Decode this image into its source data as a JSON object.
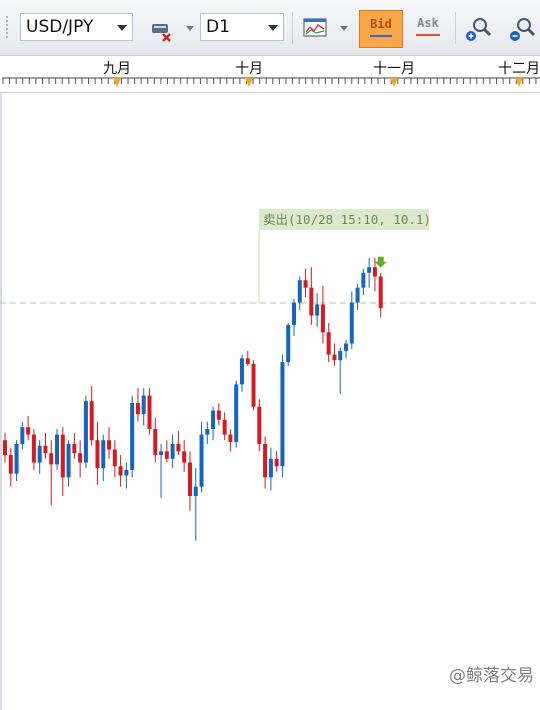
{
  "toolbar": {
    "symbol": "USD/JPY",
    "timeframe": "D1",
    "bid_label": "Bid",
    "ask_label": "Ask"
  },
  "time_scale": {
    "months": [
      "九月",
      "十月",
      "十一月",
      "十二月"
    ]
  },
  "chart": {
    "trade_tag": "卖出(10/28 15:10, 10.1)",
    "watermark": "@鲸落交易",
    "colors": {
      "up": "#1565c0",
      "down": "#d71920",
      "tag_bg": "#dde9cf",
      "tag_text": "#6b8a55",
      "marker": "#5fae2d",
      "month_marker": "#f5a623"
    }
  },
  "chart_data": {
    "type": "candlestick",
    "note_units": "relative price levels (higher = higher price), axis values not printed",
    "candles": [
      {
        "o": 30,
        "h": 34,
        "l": 18,
        "c": 22
      },
      {
        "o": 22,
        "h": 26,
        "l": 5,
        "c": 12
      },
      {
        "o": 12,
        "h": 30,
        "l": 8,
        "c": 28
      },
      {
        "o": 28,
        "h": 40,
        "l": 25,
        "c": 37
      },
      {
        "o": 37,
        "h": 43,
        "l": 30,
        "c": 33
      },
      {
        "o": 33,
        "h": 36,
        "l": 14,
        "c": 18
      },
      {
        "o": 18,
        "h": 30,
        "l": 12,
        "c": 27
      },
      {
        "o": 27,
        "h": 34,
        "l": 20,
        "c": 23
      },
      {
        "o": 23,
        "h": 30,
        "l": -5,
        "c": 17
      },
      {
        "o": 17,
        "h": 36,
        "l": 14,
        "c": 33
      },
      {
        "o": 33,
        "h": 37,
        "l": 0,
        "c": 10
      },
      {
        "o": 10,
        "h": 30,
        "l": 5,
        "c": 28
      },
      {
        "o": 28,
        "h": 34,
        "l": 20,
        "c": 23
      },
      {
        "o": 23,
        "h": 30,
        "l": 10,
        "c": 18
      },
      {
        "o": 18,
        "h": 54,
        "l": 15,
        "c": 51
      },
      {
        "o": 51,
        "h": 59,
        "l": 27,
        "c": 30
      },
      {
        "o": 30,
        "h": 40,
        "l": 6,
        "c": 15
      },
      {
        "o": 15,
        "h": 33,
        "l": 8,
        "c": 30
      },
      {
        "o": 30,
        "h": 37,
        "l": 20,
        "c": 25
      },
      {
        "o": 25,
        "h": 30,
        "l": 10,
        "c": 16
      },
      {
        "o": 16,
        "h": 22,
        "l": 5,
        "c": 11
      },
      {
        "o": 11,
        "h": 18,
        "l": 4,
        "c": 14
      },
      {
        "o": 14,
        "h": 54,
        "l": 10,
        "c": 50
      },
      {
        "o": 50,
        "h": 58,
        "l": 40,
        "c": 44
      },
      {
        "o": 44,
        "h": 58,
        "l": 38,
        "c": 54
      },
      {
        "o": 54,
        "h": 58,
        "l": 33,
        "c": 36
      },
      {
        "o": 36,
        "h": 42,
        "l": 18,
        "c": 22
      },
      {
        "o": 22,
        "h": 28,
        "l": -1,
        "c": 24
      },
      {
        "o": 24,
        "h": 30,
        "l": 18,
        "c": 20
      },
      {
        "o": 20,
        "h": 33,
        "l": 15,
        "c": 28
      },
      {
        "o": 28,
        "h": 35,
        "l": 22,
        "c": 24
      },
      {
        "o": 24,
        "h": 30,
        "l": 13,
        "c": 18
      },
      {
        "o": 18,
        "h": 24,
        "l": -8,
        "c": 0
      },
      {
        "o": 0,
        "h": 15,
        "l": -24,
        "c": 5
      },
      {
        "o": 5,
        "h": 40,
        "l": 2,
        "c": 33
      },
      {
        "o": 33,
        "h": 40,
        "l": 28,
        "c": 36
      },
      {
        "o": 36,
        "h": 48,
        "l": 30,
        "c": 46
      },
      {
        "o": 46,
        "h": 50,
        "l": 38,
        "c": 41
      },
      {
        "o": 41,
        "h": 45,
        "l": 30,
        "c": 33
      },
      {
        "o": 33,
        "h": 36,
        "l": 24,
        "c": 29
      },
      {
        "o": 29,
        "h": 62,
        "l": 26,
        "c": 60
      },
      {
        "o": 60,
        "h": 76,
        "l": 56,
        "c": 74
      },
      {
        "o": 74,
        "h": 78,
        "l": 70,
        "c": 71
      },
      {
        "o": 71,
        "h": 73,
        "l": 46,
        "c": 48
      },
      {
        "o": 48,
        "h": 52,
        "l": 24,
        "c": 28
      },
      {
        "o": 28,
        "h": 32,
        "l": 4,
        "c": 10
      },
      {
        "o": 10,
        "h": 26,
        "l": 3,
        "c": 20
      },
      {
        "o": 20,
        "h": 24,
        "l": 13,
        "c": 16
      },
      {
        "o": 16,
        "h": 76,
        "l": 10,
        "c": 72
      },
      {
        "o": 72,
        "h": 93,
        "l": 70,
        "c": 92
      },
      {
        "o": 92,
        "h": 106,
        "l": 86,
        "c": 104
      },
      {
        "o": 104,
        "h": 118,
        "l": 100,
        "c": 116
      },
      {
        "o": 116,
        "h": 122,
        "l": 107,
        "c": 112
      },
      {
        "o": 112,
        "h": 123,
        "l": 92,
        "c": 97
      },
      {
        "o": 97,
        "h": 109,
        "l": 91,
        "c": 103
      },
      {
        "o": 103,
        "h": 113,
        "l": 82,
        "c": 88
      },
      {
        "o": 88,
        "h": 93,
        "l": 72,
        "c": 76
      },
      {
        "o": 76,
        "h": 82,
        "l": 70,
        "c": 73
      },
      {
        "o": 73,
        "h": 80,
        "l": 55,
        "c": 78
      },
      {
        "o": 78,
        "h": 84,
        "l": 74,
        "c": 82
      },
      {
        "o": 82,
        "h": 110,
        "l": 79,
        "c": 104
      },
      {
        "o": 104,
        "h": 114,
        "l": 100,
        "c": 112
      },
      {
        "o": 112,
        "h": 122,
        "l": 108,
        "c": 120
      },
      {
        "o": 120,
        "h": 128,
        "l": 112,
        "c": 123
      },
      {
        "o": 123,
        "h": 128,
        "l": 110,
        "c": 118
      },
      {
        "o": 118,
        "h": 120,
        "l": 96,
        "c": 101
      }
    ]
  }
}
